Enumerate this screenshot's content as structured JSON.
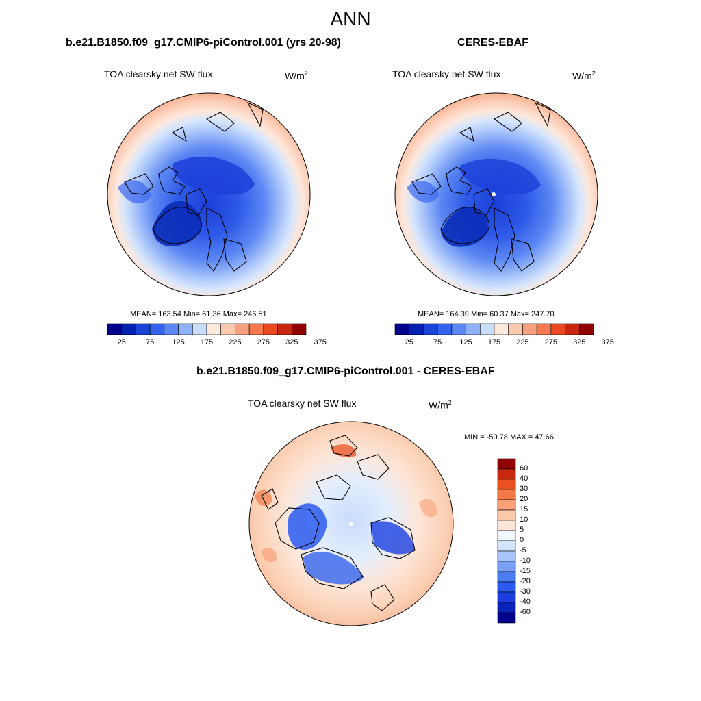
{
  "title": "ANN",
  "top_left": {
    "case": "b.e21.B1850.f09_g17.CMIP6-piControl.001 (yrs 20-98)",
    "variable": "TOA clearsky net SW flux",
    "units_base": "W/m",
    "units_exp": "2",
    "stats": "MEAN= 163.54  Min=  61.36  Max= 246.51"
  },
  "top_right": {
    "case": "CERES-EBAF",
    "variable": "TOA clearsky net SW flux",
    "units_base": "W/m",
    "units_exp": "2",
    "stats": "MEAN= 164.39  Min=  60.37  Max= 247.70"
  },
  "bottom": {
    "case": "b.e21.B1850.f09_g17.CMIP6-piControl.001 - CERES-EBAF",
    "variable": "TOA clearsky net SW flux",
    "units_base": "W/m",
    "units_exp": "2",
    "stats": "MIN = -50.78 MAX =  47.66"
  },
  "abs_colorbar": {
    "colors": [
      "#00008a",
      "#0020b0",
      "#1a44d8",
      "#3464ee",
      "#5c88f4",
      "#90b0f8",
      "#c8dcfc",
      "#fde8dc",
      "#fbc8b0",
      "#f8a080",
      "#f47850",
      "#ea4a20",
      "#c82810",
      "#900000"
    ],
    "labels": [
      "25",
      "75",
      "125",
      "175",
      "225",
      "275",
      "325",
      "375"
    ]
  },
  "diff_colorbar": {
    "colors": [
      "#00008a",
      "#0a22b8",
      "#1a3ee0",
      "#2a5aee",
      "#4a7cf2",
      "#7aa0f6",
      "#a8c4fa",
      "#d4e4fc",
      "#f2f6fe",
      "#fde6d8",
      "#fbc8a8",
      "#f8a078",
      "#f47a48",
      "#ea5020",
      "#c82810",
      "#900000"
    ],
    "labels": [
      "60",
      "40",
      "30",
      "20",
      "15",
      "10",
      "5",
      "0",
      "-5",
      "-10",
      "-15",
      "-20",
      "-30",
      "-40",
      "-60"
    ]
  }
}
